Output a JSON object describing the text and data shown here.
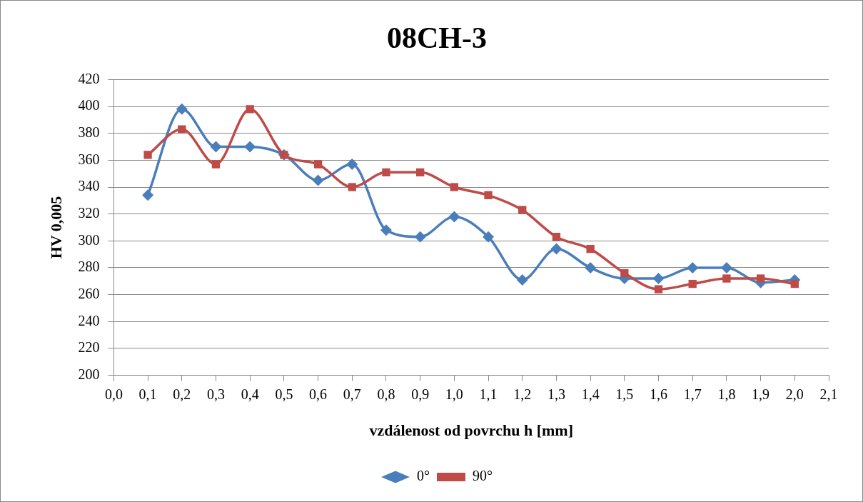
{
  "chart_data": {
    "type": "line",
    "title": "08CH-3",
    "xlabel": "vzdálenost od povrchu h [mm]",
    "ylabel": "HV 0,005",
    "x": [
      0.1,
      0.2,
      0.3,
      0.4,
      0.5,
      0.6,
      0.7,
      0.8,
      0.9,
      1.0,
      1.1,
      1.2,
      1.3,
      1.4,
      1.5,
      1.6,
      1.7,
      1.8,
      1.9,
      2.0
    ],
    "series": [
      {
        "name": "0°",
        "color": "#4a7ebb",
        "marker": "diamond",
        "values": [
          334,
          398,
          370,
          370,
          364,
          345,
          357,
          308,
          303,
          318,
          303,
          271,
          294,
          280,
          272,
          272,
          280,
          280,
          269,
          271
        ]
      },
      {
        "name": "90°",
        "color": "#be4b48",
        "marker": "square",
        "values": [
          364,
          383,
          357,
          398,
          364,
          357,
          340,
          351,
          351,
          340,
          334,
          323,
          303,
          294,
          276,
          264,
          268,
          272,
          272,
          268
        ]
      }
    ],
    "xlim": [
      0,
      2.1
    ],
    "xticks": [
      {
        "value": 0,
        "label": "0,0"
      },
      {
        "value": 0.1,
        "label": "0,1"
      },
      {
        "value": 0.2,
        "label": "0,2"
      },
      {
        "value": 0.3,
        "label": "0,3"
      },
      {
        "value": 0.4,
        "label": "0,4"
      },
      {
        "value": 0.5,
        "label": "0,5"
      },
      {
        "value": 0.6,
        "label": "0,6"
      },
      {
        "value": 0.7,
        "label": "0,7"
      },
      {
        "value": 0.8,
        "label": "0,8"
      },
      {
        "value": 0.9,
        "label": "0,9"
      },
      {
        "value": 1.0,
        "label": "1,0"
      },
      {
        "value": 1.1,
        "label": "1,1"
      },
      {
        "value": 1.2,
        "label": "1,2"
      },
      {
        "value": 1.3,
        "label": "1,3"
      },
      {
        "value": 1.4,
        "label": "1,4"
      },
      {
        "value": 1.5,
        "label": "1,5"
      },
      {
        "value": 1.6,
        "label": "1,6"
      },
      {
        "value": 1.7,
        "label": "1,7"
      },
      {
        "value": 1.8,
        "label": "1,8"
      },
      {
        "value": 1.9,
        "label": "1,9"
      },
      {
        "value": 2.0,
        "label": "2,0"
      },
      {
        "value": 2.1,
        "label": "2,1"
      }
    ],
    "ylim": [
      200,
      420
    ],
    "yticks": [
      200,
      220,
      240,
      260,
      280,
      300,
      320,
      340,
      360,
      380,
      400,
      420
    ],
    "grid": "y",
    "legend": "bottom",
    "line_style": "solid"
  }
}
